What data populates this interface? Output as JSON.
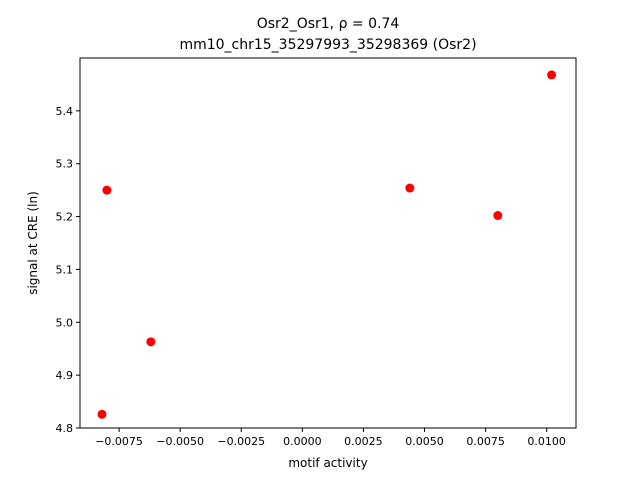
{
  "chart_data": {
    "type": "scatter",
    "title_line1": "Osr2_Osr1, ρ = 0.74",
    "title_line2": "mm10_chr15_35297993_35298369 (Osr2)",
    "xlabel": "motif activity",
    "ylabel": "signal at CRE (ln)",
    "xlim": [
      -0.0091,
      0.0112
    ],
    "ylim": [
      4.8,
      5.5
    ],
    "x_ticks": [
      -0.0075,
      -0.005,
      -0.0025,
      0.0,
      0.0025,
      0.005,
      0.0075,
      0.01
    ],
    "x_tick_labels": [
      "−0.0075",
      "−0.0050",
      "−0.0025",
      "0.0000",
      "0.0025",
      "0.0050",
      "0.0075",
      "0.0100"
    ],
    "y_ticks": [
      4.8,
      4.9,
      5.0,
      5.1,
      5.2,
      5.3,
      5.4
    ],
    "y_tick_labels": [
      "4.8",
      "4.9",
      "5.0",
      "5.1",
      "5.2",
      "5.3",
      "5.4"
    ],
    "marker_color": "#ff0000",
    "grid": false,
    "points": [
      {
        "x": -0.0082,
        "y": 4.826
      },
      {
        "x": -0.008,
        "y": 5.25
      },
      {
        "x": -0.0062,
        "y": 4.963
      },
      {
        "x": 0.0044,
        "y": 5.254
      },
      {
        "x": 0.008,
        "y": 5.202
      },
      {
        "x": 0.0102,
        "y": 5.468
      }
    ]
  }
}
